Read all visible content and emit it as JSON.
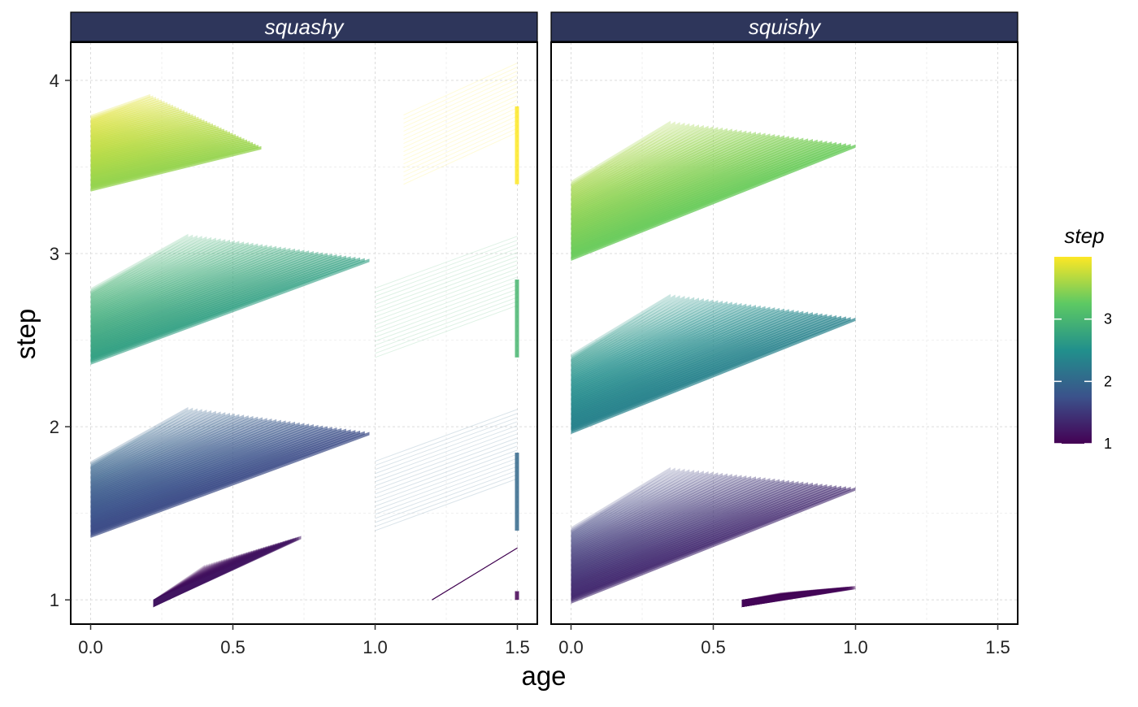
{
  "chart_data": {
    "type": "area",
    "facet_var": "mode",
    "facets": [
      {
        "label": "squashy",
        "xlim": [
          -0.07,
          1.57
        ],
        "bands": [
          {
            "step": 4,
            "left_x": 0.0,
            "y0": 3.4,
            "y1": 3.8,
            "extend_x": 0.6,
            "peak_y": 4.02,
            "right_tail": [
              1.1,
              1.5
            ],
            "alpha": 0.75
          },
          {
            "step": 3,
            "left_x": 0.0,
            "y0": 2.4,
            "y1": 2.8,
            "extend_x": 0.98,
            "peak_y": 3.37,
            "right_tail": [
              1.0,
              1.5
            ],
            "alpha": 0.6
          },
          {
            "step": 2,
            "left_x": 0.0,
            "y0": 1.4,
            "y1": 1.8,
            "extend_x": 0.98,
            "peak_y": 2.37,
            "right_tail": [
              1.0,
              1.5
            ],
            "alpha": 0.7
          },
          {
            "step": 1,
            "left_x": 0.22,
            "y0": 1.0,
            "y1": 1.0,
            "extend_x": 0.74,
            "peak_y": 1.37,
            "right_tail": [
              1.2,
              1.5
            ],
            "alpha": 0.55
          }
        ]
      },
      {
        "label": "squishy",
        "xlim": [
          -0.07,
          1.57
        ],
        "bands": [
          {
            "step": 4,
            "left_x": 0.0,
            "y0": 3.0,
            "y1": 3.42,
            "extend_x": 1.0,
            "peak_y": 4.05,
            "alpha": 0.8
          },
          {
            "step": 3,
            "left_x": 0.0,
            "y0": 2.0,
            "y1": 2.42,
            "extend_x": 1.0,
            "peak_y": 3.05,
            "alpha": 0.7
          },
          {
            "step": 2,
            "left_x": 0.0,
            "y0": 1.02,
            "y1": 1.42,
            "extend_x": 1.0,
            "peak_y": 2.05,
            "alpha": 0.6
          },
          {
            "step": 1,
            "left_x": 0.6,
            "y0": 1.0,
            "y1": 1.0,
            "extend_x": 1.0,
            "peak_y": 1.08,
            "alpha": 0.5
          }
        ]
      }
    ],
    "ylim": [
      0.86,
      4.22
    ],
    "x_ticks": [
      0.0,
      0.5,
      1.0,
      1.5
    ],
    "x_tick_labels": [
      "0.0",
      "0.5",
      "1.0",
      "1.5"
    ],
    "y_ticks": [
      1,
      2,
      3,
      4
    ],
    "y_tick_labels": [
      "1",
      "2",
      "3",
      "4"
    ],
    "xlabel": "age",
    "ylabel": "step",
    "grid": true,
    "legend": {
      "title": "step",
      "placement": "right",
      "range": [
        1,
        4
      ],
      "ticks": [
        1,
        2,
        3
      ],
      "tick_labels": [
        "1",
        "2",
        "3"
      ],
      "palette": "viridis"
    },
    "strip_color": "#2e365b",
    "palette_stops": [
      "#440154",
      "#3b528b",
      "#21908c",
      "#5dc963",
      "#fde725"
    ]
  }
}
